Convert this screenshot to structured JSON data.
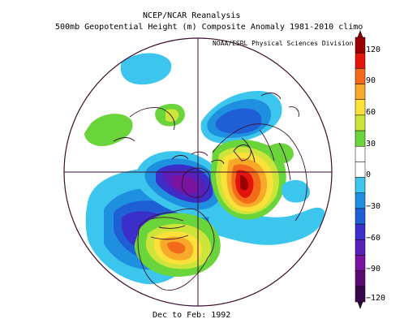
{
  "header": {
    "title_line1": "NCEP/NCAR Reanalysis",
    "title_line2": "500mb Geopotential Height (m) Composite Anomaly 1981-2010 climo",
    "credit": "NOAA/ESRL Physical Sciences Division"
  },
  "footer": {
    "period": "Dec to Feb: 1992"
  },
  "colorbar": {
    "labels": [
      "120",
      "90",
      "60",
      "30",
      "0",
      "−30",
      "−60",
      "−90",
      "−120"
    ],
    "colors": [
      "#9a0000",
      "#e3140c",
      "#f26a1a",
      "#f8a92a",
      "#fce13a",
      "#cde43a",
      "#6ad53a",
      "#ffffff",
      "#ffffff",
      "#3cc6ee",
      "#1f8fe0",
      "#1f5fd6",
      "#3a2fc8",
      "#5a1fb8",
      "#7a14a0",
      "#5a0a6e",
      "#3a0548"
    ]
  },
  "map": {
    "projection": "north-polar-stereographic",
    "coastline_color": "#3a1030",
    "anomaly_regions": [
      "negative-north-pacific-aleutian",
      "negative-greenland-arctic",
      "positive-north-america",
      "positive-western-europe-atlantic",
      "positive-north-pacific-edge",
      "negative-siberia-europe"
    ]
  }
}
